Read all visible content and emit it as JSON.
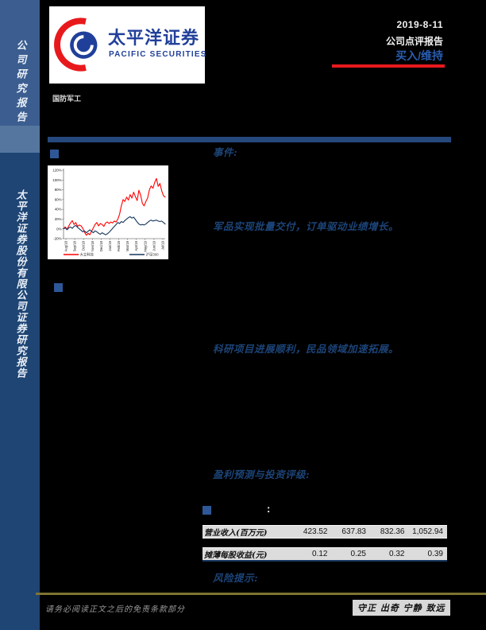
{
  "sidebar": {
    "top_label": "公司研究报告",
    "bottom_label": "太平洋证券股份有限公司证券研究报告"
  },
  "header": {
    "logo_cn": "太平洋证券",
    "logo_en": "PACIFIC SECURITIES",
    "date": "2019-8-11",
    "report_type": "公司点评报告",
    "rating": "买入/维持",
    "industry": "国防军工",
    "accent_red": "#E8191C",
    "rating_blue": "#2A5DB0"
  },
  "sections": {
    "event_label": "事件:",
    "point1": "军品实现批量交付，订单驱动业绩增长。",
    "point2": "科研项目进展顺利，民品领域加速拓展。",
    "profit_label": "盈利预测与投资评级:",
    "table_colon": ":",
    "risk_label": "风险提示:"
  },
  "table": {
    "rows": [
      {
        "label": "营业收入(百万元)",
        "values": [
          "423.52",
          "637.83",
          "832.36",
          "1,052.94"
        ]
      },
      {
        "label": "摊薄每股收益(元)",
        "values": [
          "0.12",
          "0.25",
          "0.32",
          "0.39"
        ]
      }
    ]
  },
  "footer": {
    "disclaimer": "请务必阅读正文之后的免责条款部分",
    "motto": "守正 出奇 宁静 致远"
  },
  "chart_data": {
    "type": "line",
    "title": "",
    "xlabel": "",
    "ylabel": "",
    "ylim": [
      -20,
      120
    ],
    "grid": false,
    "legend_position": "bottom",
    "x_labels": [
      "Aug/18",
      "Sep/18",
      "Oct/18",
      "Nov/18",
      "Dec/18",
      "Jan/19",
      "Feb/19",
      "Mar/19",
      "Apr/19",
      "May/19",
      "Jun/19",
      "Jul/19"
    ],
    "y_tick_labels": [
      "120%",
      "100%",
      "80%",
      "60%",
      "40%",
      "20%",
      "0%",
      "-20%"
    ],
    "series": [
      {
        "name": "大立科技",
        "color": "#FF0000",
        "values": [
          0,
          4,
          -1,
          6,
          12,
          17,
          9,
          13,
          5,
          8,
          6,
          1,
          -7,
          -13,
          -9,
          -12,
          -5,
          2,
          9,
          13,
          6,
          11,
          9,
          5,
          12,
          14,
          11,
          14,
          12,
          16,
          14,
          20,
          30,
          47,
          60,
          56,
          65,
          59,
          70,
          63,
          75,
          66,
          58,
          79,
          69,
          52,
          47,
          56,
          63,
          80,
          88,
          83,
          95,
          103,
          87,
          93,
          78,
          68,
          65
        ]
      },
      {
        "name": "沪深300",
        "color": "#17375E",
        "values": [
          0,
          2,
          -2,
          2,
          4,
          1,
          5,
          7,
          3,
          0,
          -3,
          -6,
          -4,
          -8,
          -5,
          -2,
          -5,
          -8,
          -4,
          -6,
          -9,
          -11,
          -8,
          -10,
          -12,
          -10,
          -7,
          -3,
          1,
          5,
          9,
          13,
          11,
          15,
          13,
          17,
          20,
          23,
          25,
          22,
          24,
          19,
          14,
          10,
          8,
          9,
          8,
          10,
          13,
          16,
          18,
          16,
          17,
          18,
          16,
          15,
          16,
          13,
          10
        ]
      }
    ]
  }
}
